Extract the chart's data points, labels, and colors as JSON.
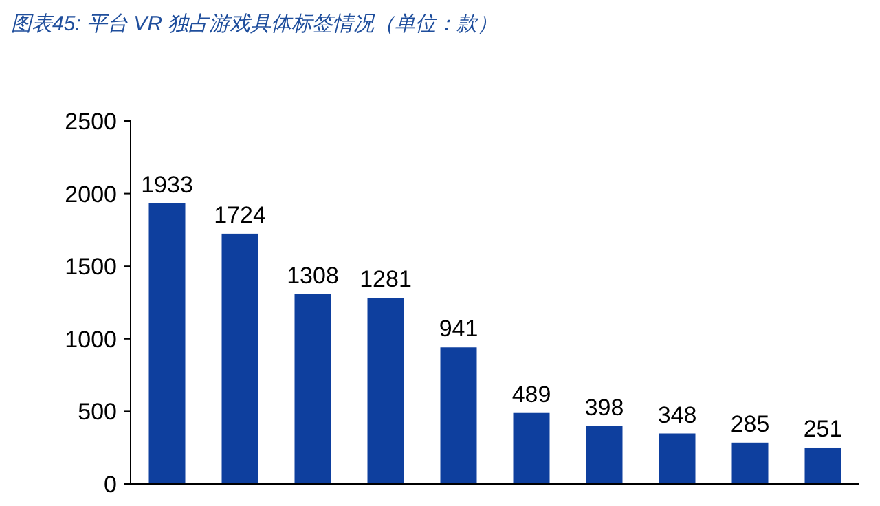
{
  "chart_data": {
    "type": "bar",
    "title": "图表45: 平台 VR 独占游戏具体标签情况（单位：款）",
    "categories": [
      null,
      null,
      null,
      null,
      null,
      null,
      null,
      null,
      null,
      null
    ],
    "values": [
      1933,
      1724,
      1308,
      1281,
      941,
      489,
      398,
      348,
      285,
      251
    ],
    "color": "#0e3f9e",
    "ylim": [
      0,
      2500
    ],
    "yticks": [
      0,
      500,
      1000,
      1500,
      2000,
      2500
    ],
    "data_labels": true,
    "grid": false
  }
}
